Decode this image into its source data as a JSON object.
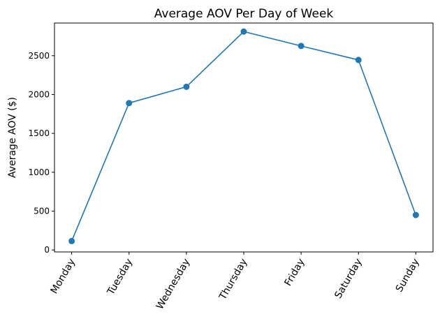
{
  "chart_data": {
    "type": "line",
    "title": "Average AOV Per Day of Week",
    "xlabel": "",
    "ylabel": "Average AOV ($)",
    "categories": [
      "Monday",
      "Tuesday",
      "Wednesday",
      "Thursday",
      "Friday",
      "Saturday",
      "Sunday"
    ],
    "series": [
      {
        "values": [
          115,
          1890,
          2100,
          2810,
          2625,
          2445,
          450
        ]
      }
    ],
    "ylim": [
      -25,
      2920
    ],
    "yticks": [
      0,
      500,
      1000,
      1500,
      2000,
      2500
    ],
    "grid": false,
    "legend": "none",
    "marker": "circle",
    "colors": {
      "series": "#1f77b4"
    }
  }
}
